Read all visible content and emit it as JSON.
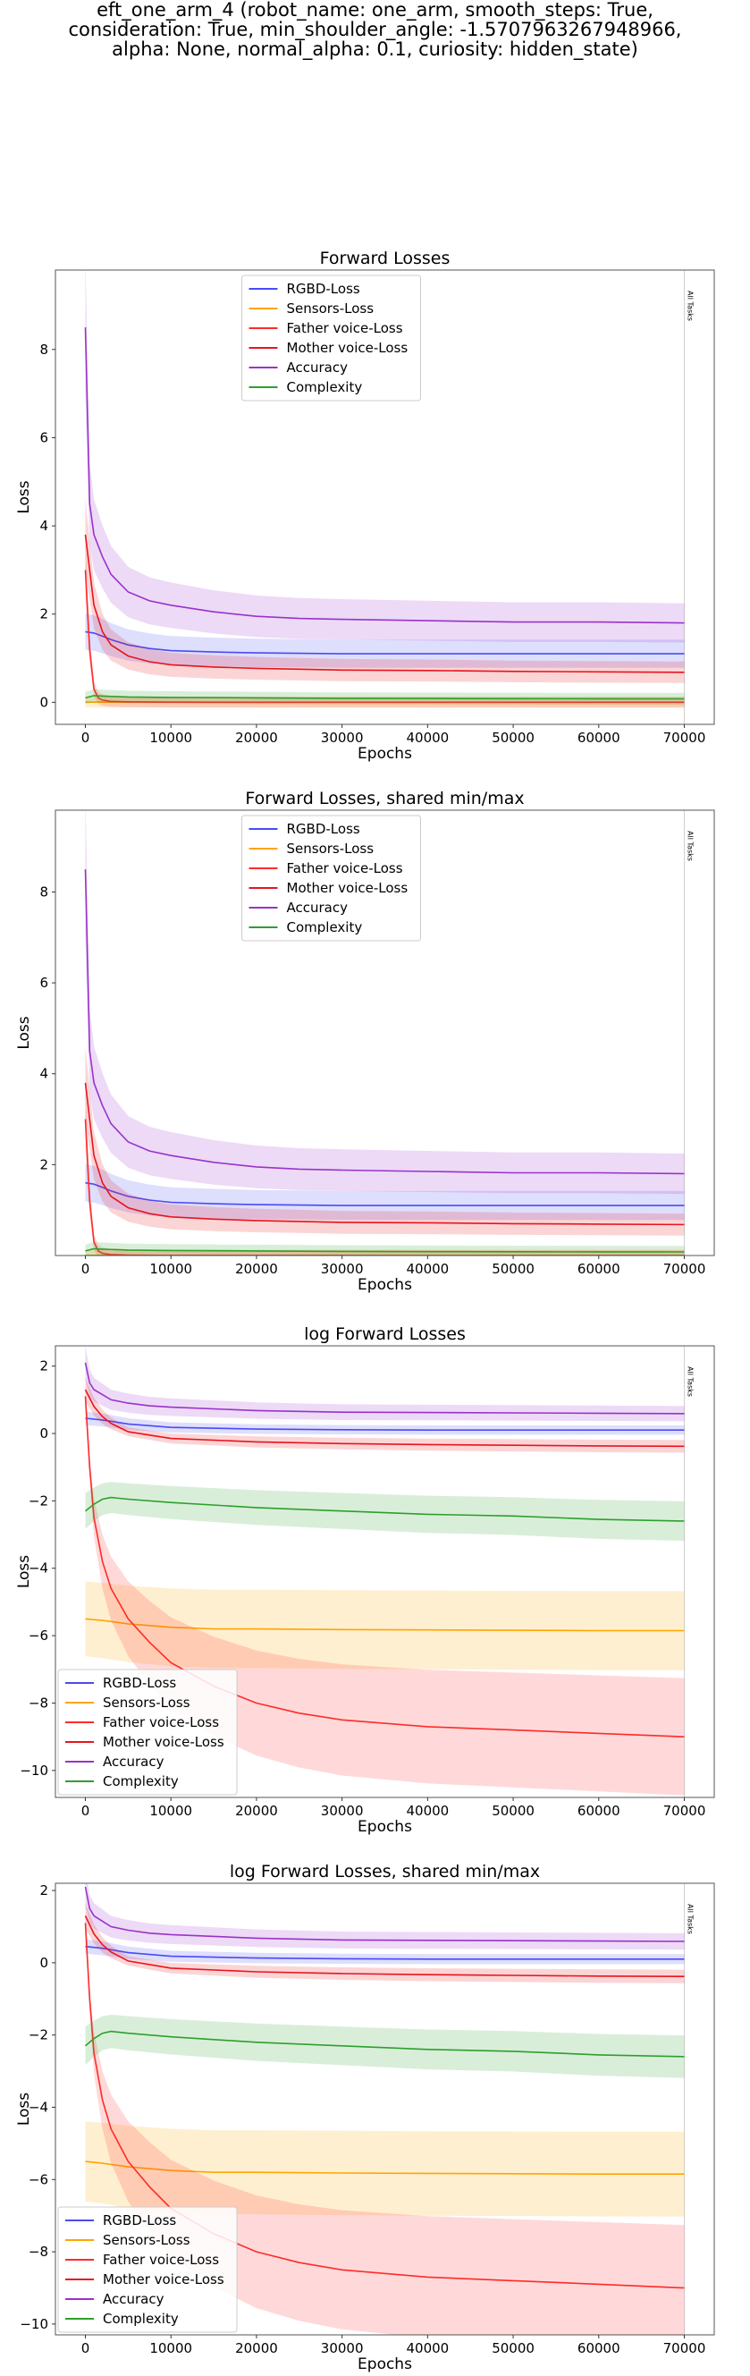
{
  "figure": {
    "suptitle_lines": [
      "eft_one_arm_4 (robot_name: one_arm, smooth_steps: True,",
      "consideration: True, min_shoulder_angle: -1.5707963267948966,",
      "alpha: None, normal_alpha: 0.1, curiosity: hidden_state)"
    ]
  },
  "chart_data": [
    {
      "type": "line",
      "title": "Forward Losses",
      "xlabel": "Epochs",
      "ylabel": "Loss",
      "xlim": [
        -3500,
        73500
      ],
      "ylim": [
        -0.5,
        9.8
      ],
      "xticks": [
        0,
        10000,
        20000,
        30000,
        40000,
        50000,
        60000,
        70000
      ],
      "yticks": [
        0,
        2,
        4,
        6,
        8
      ],
      "legend_position": "top-center",
      "vline_x": 70000,
      "vline_label": "All Tasks",
      "series": [
        {
          "name": "RGBD-Loss",
          "color": "#4a4af4",
          "x": [
            0,
            1000,
            2000,
            3000,
            5000,
            7500,
            10000,
            15000,
            20000,
            25000,
            30000,
            35000,
            40000,
            45000,
            50000,
            55000,
            60000,
            65000,
            70000
          ],
          "y": [
            1.6,
            1.57,
            1.5,
            1.42,
            1.3,
            1.22,
            1.17,
            1.14,
            1.12,
            1.11,
            1.1,
            1.1,
            1.1,
            1.1,
            1.1,
            1.1,
            1.1,
            1.1,
            1.1
          ]
        },
        {
          "name": "Sensors-Loss",
          "color": "#ffa500",
          "x": [
            0,
            1000,
            2000,
            5000,
            10000,
            20000,
            30000,
            40000,
            50000,
            60000,
            70000
          ],
          "y": [
            0.004,
            0.003,
            0.003,
            0.003,
            0.003,
            0.003,
            0.003,
            0.003,
            0.003,
            0.003,
            0.003
          ]
        },
        {
          "name": "Father voice-Loss",
          "color": "#ff2a2a",
          "x": [
            0,
            500,
            1000,
            1500,
            2000,
            3000,
            5000,
            10000,
            20000,
            30000,
            40000,
            50000,
            60000,
            70000
          ],
          "y": [
            3.0,
            1.2,
            0.3,
            0.1,
            0.05,
            0.02,
            0.01,
            0.002,
            0.001,
            0.001,
            0.0005,
            0.0005,
            0.0005,
            0.0005
          ]
        },
        {
          "name": "Mother voice-Loss",
          "color": "#e8141e",
          "x": [
            0,
            1000,
            2000,
            3000,
            5000,
            7500,
            10000,
            15000,
            20000,
            25000,
            30000,
            40000,
            50000,
            60000,
            70000
          ],
          "y": [
            3.8,
            2.2,
            1.6,
            1.3,
            1.05,
            0.92,
            0.85,
            0.8,
            0.77,
            0.75,
            0.73,
            0.72,
            0.7,
            0.69,
            0.68
          ]
        },
        {
          "name": "Accuracy",
          "color": "#9932cc",
          "x": [
            0,
            500,
            1000,
            2000,
            3000,
            5000,
            7500,
            10000,
            15000,
            20000,
            25000,
            30000,
            40000,
            50000,
            60000,
            70000
          ],
          "y": [
            8.5,
            4.5,
            3.8,
            3.3,
            2.9,
            2.5,
            2.3,
            2.2,
            2.05,
            1.95,
            1.9,
            1.88,
            1.85,
            1.82,
            1.82,
            1.8
          ]
        },
        {
          "name": "Complexity",
          "color": "#2ca02c",
          "x": [
            0,
            1000,
            2000,
            5000,
            10000,
            20000,
            30000,
            40000,
            50000,
            60000,
            70000
          ],
          "y": [
            0.1,
            0.15,
            0.14,
            0.12,
            0.11,
            0.1,
            0.09,
            0.085,
            0.082,
            0.08,
            0.078
          ]
        }
      ]
    },
    {
      "type": "line",
      "title": "Forward Losses, shared min/max",
      "xlabel": "Epochs",
      "ylabel": "Loss",
      "xlim": [
        -3500,
        73500
      ],
      "ylim": [
        0,
        9.8
      ],
      "xticks": [
        0,
        10000,
        20000,
        30000,
        40000,
        50000,
        60000,
        70000
      ],
      "yticks": [
        2,
        4,
        6,
        8
      ],
      "legend_position": "top-center",
      "vline_x": 70000,
      "vline_label": "All Tasks",
      "series": [
        {
          "name": "RGBD-Loss",
          "color": "#4a4af4",
          "x": [
            0,
            1000,
            2000,
            3000,
            5000,
            7500,
            10000,
            15000,
            20000,
            25000,
            30000,
            35000,
            40000,
            45000,
            50000,
            55000,
            60000,
            65000,
            70000
          ],
          "y": [
            1.6,
            1.57,
            1.5,
            1.42,
            1.3,
            1.22,
            1.17,
            1.14,
            1.12,
            1.11,
            1.1,
            1.1,
            1.1,
            1.1,
            1.1,
            1.1,
            1.1,
            1.1,
            1.1
          ]
        },
        {
          "name": "Sensors-Loss",
          "color": "#ffa500",
          "x": [
            0,
            1000,
            2000,
            5000,
            10000,
            20000,
            30000,
            40000,
            50000,
            60000,
            70000
          ],
          "y": [
            0.004,
            0.003,
            0.003,
            0.003,
            0.003,
            0.003,
            0.003,
            0.003,
            0.003,
            0.003,
            0.003
          ]
        },
        {
          "name": "Father voice-Loss",
          "color": "#ff2a2a",
          "x": [
            0,
            500,
            1000,
            1500,
            2000,
            3000,
            5000,
            10000,
            20000,
            30000,
            40000,
            50000,
            60000,
            70000
          ],
          "y": [
            3.0,
            1.2,
            0.3,
            0.1,
            0.05,
            0.02,
            0.01,
            0.002,
            0.001,
            0.001,
            0.0005,
            0.0005,
            0.0005,
            0.0005
          ]
        },
        {
          "name": "Mother voice-Loss",
          "color": "#e8141e",
          "x": [
            0,
            1000,
            2000,
            3000,
            5000,
            7500,
            10000,
            15000,
            20000,
            25000,
            30000,
            40000,
            50000,
            60000,
            70000
          ],
          "y": [
            3.8,
            2.2,
            1.6,
            1.3,
            1.05,
            0.92,
            0.85,
            0.8,
            0.77,
            0.75,
            0.73,
            0.72,
            0.7,
            0.69,
            0.68
          ]
        },
        {
          "name": "Accuracy",
          "color": "#9932cc",
          "x": [
            0,
            500,
            1000,
            2000,
            3000,
            5000,
            7500,
            10000,
            15000,
            20000,
            25000,
            30000,
            40000,
            50000,
            60000,
            70000
          ],
          "y": [
            8.5,
            4.5,
            3.8,
            3.3,
            2.9,
            2.5,
            2.3,
            2.2,
            2.05,
            1.95,
            1.9,
            1.88,
            1.85,
            1.82,
            1.82,
            1.8
          ]
        },
        {
          "name": "Complexity",
          "color": "#2ca02c",
          "x": [
            0,
            1000,
            2000,
            5000,
            10000,
            20000,
            30000,
            40000,
            50000,
            60000,
            70000
          ],
          "y": [
            0.1,
            0.15,
            0.14,
            0.12,
            0.11,
            0.1,
            0.09,
            0.085,
            0.082,
            0.08,
            0.078
          ]
        }
      ]
    },
    {
      "type": "line",
      "title": "log Forward Losses",
      "xlabel": "Epochs",
      "ylabel": "Loss",
      "xlim": [
        -3500,
        73500
      ],
      "ylim": [
        -10.8,
        2.6
      ],
      "xticks": [
        0,
        10000,
        20000,
        30000,
        40000,
        50000,
        60000,
        70000
      ],
      "yticks": [
        -10,
        -8,
        -6,
        -4,
        -2,
        0,
        2
      ],
      "legend_position": "lower-left",
      "vline_x": 70000,
      "vline_label": "All Tasks",
      "series": [
        {
          "name": "RGBD-Loss",
          "color": "#4a4af4",
          "x": [
            0,
            2000,
            5000,
            10000,
            20000,
            30000,
            40000,
            50000,
            60000,
            70000
          ],
          "y": [
            0.45,
            0.4,
            0.28,
            0.18,
            0.13,
            0.11,
            0.1,
            0.1,
            0.1,
            0.1
          ]
        },
        {
          "name": "Sensors-Loss",
          "color": "#ffa500",
          "x": [
            0,
            2000,
            5000,
            10000,
            15000,
            20000,
            30000,
            40000,
            50000,
            60000,
            70000
          ],
          "y": [
            -5.5,
            -5.55,
            -5.65,
            -5.75,
            -5.8,
            -5.8,
            -5.82,
            -5.83,
            -5.84,
            -5.85,
            -5.85
          ]
        },
        {
          "name": "Father voice-Loss",
          "color": "#ff2a2a",
          "x": [
            0,
            500,
            1000,
            2000,
            3000,
            5000,
            7500,
            10000,
            15000,
            20000,
            25000,
            30000,
            40000,
            50000,
            60000,
            70000
          ],
          "y": [
            1.1,
            -1.0,
            -2.5,
            -3.8,
            -4.6,
            -5.5,
            -6.2,
            -6.8,
            -7.5,
            -8.0,
            -8.3,
            -8.5,
            -8.7,
            -8.8,
            -8.9,
            -9.0
          ]
        },
        {
          "name": "Mother voice-Loss",
          "color": "#e8141e",
          "x": [
            0,
            1000,
            2000,
            3000,
            5000,
            10000,
            20000,
            30000,
            40000,
            50000,
            60000,
            70000
          ],
          "y": [
            1.3,
            0.8,
            0.5,
            0.3,
            0.05,
            -0.15,
            -0.25,
            -0.3,
            -0.33,
            -0.35,
            -0.37,
            -0.38
          ]
        },
        {
          "name": "Accuracy",
          "color": "#9932cc",
          "x": [
            0,
            500,
            1000,
            2000,
            3000,
            5000,
            7500,
            10000,
            20000,
            30000,
            40000,
            50000,
            60000,
            70000
          ],
          "y": [
            2.1,
            1.5,
            1.3,
            1.15,
            1.0,
            0.9,
            0.82,
            0.78,
            0.68,
            0.63,
            0.62,
            0.61,
            0.6,
            0.59
          ]
        },
        {
          "name": "Complexity",
          "color": "#2ca02c",
          "x": [
            0,
            1000,
            2000,
            3000,
            5000,
            10000,
            20000,
            30000,
            40000,
            50000,
            60000,
            70000
          ],
          "y": [
            -2.3,
            -2.1,
            -1.95,
            -1.9,
            -1.95,
            -2.05,
            -2.2,
            -2.3,
            -2.4,
            -2.45,
            -2.55,
            -2.6
          ]
        }
      ]
    },
    {
      "type": "line",
      "title": "log Forward Losses, shared min/max",
      "xlabel": "Epochs",
      "ylabel": "Loss",
      "xlim": [
        -3500,
        73500
      ],
      "ylim": [
        -10.3,
        2.2
      ],
      "xticks": [
        0,
        10000,
        20000,
        30000,
        40000,
        50000,
        60000,
        70000
      ],
      "yticks": [
        -10,
        -8,
        -6,
        -4,
        -2,
        0,
        2
      ],
      "legend_position": "lower-left",
      "vline_x": 70000,
      "vline_label": "All Tasks",
      "series": [
        {
          "name": "RGBD-Loss",
          "color": "#4a4af4",
          "x": [
            0,
            2000,
            5000,
            10000,
            20000,
            30000,
            40000,
            50000,
            60000,
            70000
          ],
          "y": [
            0.45,
            0.4,
            0.28,
            0.18,
            0.13,
            0.11,
            0.1,
            0.1,
            0.1,
            0.1
          ]
        },
        {
          "name": "Sensors-Loss",
          "color": "#ffa500",
          "x": [
            0,
            2000,
            5000,
            10000,
            15000,
            20000,
            30000,
            40000,
            50000,
            60000,
            70000
          ],
          "y": [
            -5.5,
            -5.55,
            -5.65,
            -5.75,
            -5.8,
            -5.8,
            -5.82,
            -5.83,
            -5.84,
            -5.85,
            -5.85
          ]
        },
        {
          "name": "Father voice-Loss",
          "color": "#ff2a2a",
          "x": [
            0,
            500,
            1000,
            2000,
            3000,
            5000,
            7500,
            10000,
            15000,
            20000,
            25000,
            30000,
            40000,
            50000,
            60000,
            70000
          ],
          "y": [
            1.1,
            -1.0,
            -2.5,
            -3.8,
            -4.6,
            -5.5,
            -6.2,
            -6.8,
            -7.5,
            -8.0,
            -8.3,
            -8.5,
            -8.7,
            -8.8,
            -8.9,
            -9.0
          ]
        },
        {
          "name": "Mother voice-Loss",
          "color": "#e8141e",
          "x": [
            0,
            1000,
            2000,
            3000,
            5000,
            10000,
            20000,
            30000,
            40000,
            50000,
            60000,
            70000
          ],
          "y": [
            1.3,
            0.8,
            0.5,
            0.3,
            0.05,
            -0.15,
            -0.25,
            -0.3,
            -0.33,
            -0.35,
            -0.37,
            -0.38
          ]
        },
        {
          "name": "Accuracy",
          "color": "#9932cc",
          "x": [
            0,
            500,
            1000,
            2000,
            3000,
            5000,
            7500,
            10000,
            20000,
            30000,
            40000,
            50000,
            60000,
            70000
          ],
          "y": [
            2.1,
            1.5,
            1.3,
            1.15,
            1.0,
            0.9,
            0.82,
            0.78,
            0.68,
            0.63,
            0.62,
            0.61,
            0.6,
            0.59
          ]
        },
        {
          "name": "Complexity",
          "color": "#2ca02c",
          "x": [
            0,
            1000,
            2000,
            3000,
            5000,
            10000,
            20000,
            30000,
            40000,
            50000,
            60000,
            70000
          ],
          "y": [
            -2.3,
            -2.1,
            -1.95,
            -1.9,
            -1.95,
            -2.05,
            -2.2,
            -2.3,
            -2.4,
            -2.45,
            -2.55,
            -2.6
          ]
        }
      ]
    }
  ]
}
